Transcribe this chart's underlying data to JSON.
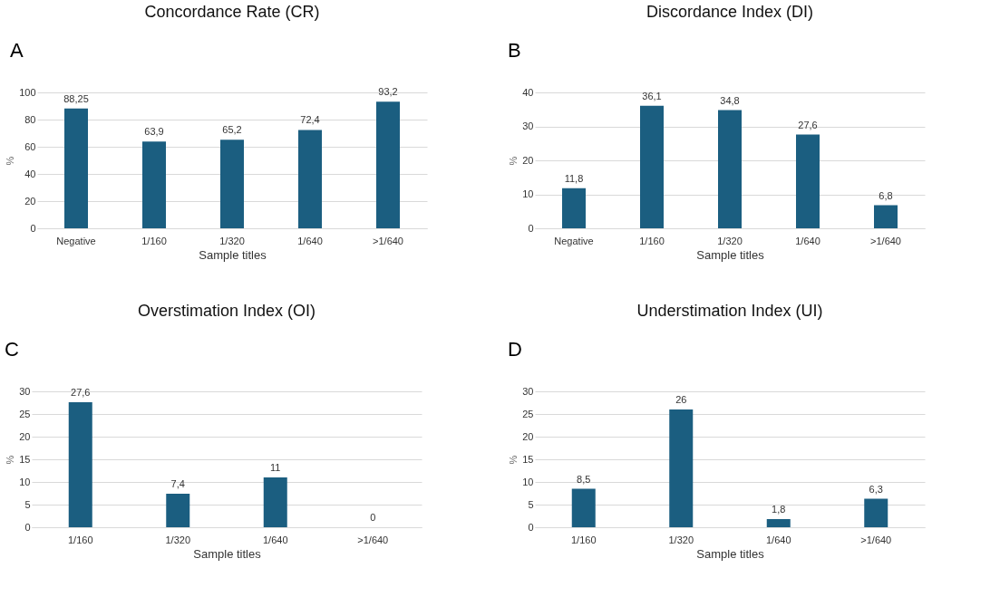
{
  "chart_data": [
    {
      "type": "bar",
      "title": "Concordance Rate (CR)",
      "xlabel": "Sample titles",
      "ylabel": "%",
      "annotations": [
        "A"
      ],
      "categories": [
        "Negative",
        "1/160",
        "1/320",
        "1/640",
        ">1/640"
      ],
      "values": [
        88.25,
        63.9,
        65.2,
        72.4,
        93.2
      ],
      "value_labels": [
        "88,25",
        "63,9",
        "65,2",
        "72,4",
        "93,2"
      ],
      "color": "#1b5e80",
      "ylim": [
        0,
        100
      ],
      "yticks": [
        0,
        20,
        40,
        60,
        80,
        100
      ],
      "grid": "y"
    },
    {
      "type": "bar",
      "title": "Discordance Index (DI)",
      "xlabel": "Sample titles",
      "ylabel": "%",
      "annotations": [
        "B"
      ],
      "categories": [
        "Negative",
        "1/160",
        "1/320",
        "1/640",
        ">1/640"
      ],
      "values": [
        11.8,
        36.1,
        34.8,
        27.6,
        6.8
      ],
      "value_labels": [
        "11,8",
        "36,1",
        "34,8",
        "27,6",
        "6,8"
      ],
      "color": "#1b5e80",
      "ylim": [
        0,
        40
      ],
      "yticks": [
        0,
        10,
        20,
        30,
        40
      ],
      "grid": "y"
    },
    {
      "type": "bar",
      "title": "Overstimation Index (OI)",
      "xlabel": "Sample titles",
      "ylabel": "%",
      "annotations": [
        "C"
      ],
      "categories": [
        "1/160",
        "1/320",
        "1/640",
        ">1/640"
      ],
      "values": [
        27.6,
        7.4,
        11,
        0
      ],
      "value_labels": [
        "27,6",
        "7,4",
        "11",
        "0"
      ],
      "color": "#1b5e80",
      "ylim": [
        0,
        30
      ],
      "yticks": [
        0,
        5,
        10,
        15,
        20,
        25,
        30
      ],
      "grid": "y"
    },
    {
      "type": "bar",
      "title": "Understimation Index (UI)",
      "xlabel": "Sample titles",
      "ylabel": "%",
      "annotations": [
        "D"
      ],
      "categories": [
        "1/160",
        "1/320",
        "1/640",
        ">1/640"
      ],
      "values": [
        8.5,
        26,
        1.8,
        6.3
      ],
      "value_labels": [
        "8,5",
        "26",
        "1,8",
        "6,3"
      ],
      "color": "#1b5e80",
      "ylim": [
        0,
        30
      ],
      "yticks": [
        0,
        5,
        10,
        15,
        20,
        25,
        30
      ],
      "grid": "y"
    }
  ]
}
